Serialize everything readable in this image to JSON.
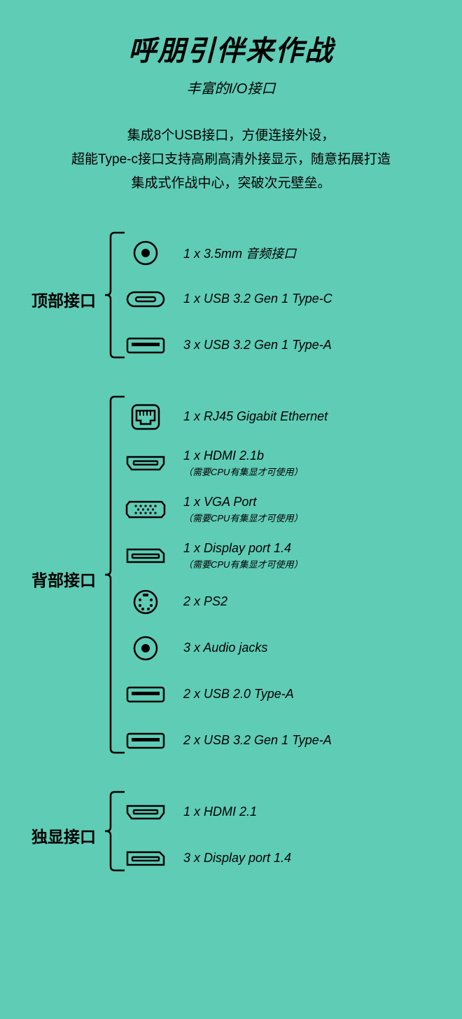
{
  "colors": {
    "background": "#5fccb6",
    "stroke": "#000000",
    "text": "#000000"
  },
  "typography": {
    "title_fontsize": 40,
    "title_weight": 900,
    "subtitle_fontsize": 20,
    "description_fontsize": 19,
    "section_label_fontsize": 23,
    "port_label_fontsize": 18,
    "port_note_fontsize": 13,
    "italic": true
  },
  "title": "呼朋引伴来作战",
  "subtitle": "丰富的I/O接口",
  "description_lines": [
    "集成8个USB接口，方便连接外设，",
    "超能Type-c接口支持高刷高清外接显示，随意拓展打造",
    "集成式作战中心，突破次元壁垒。"
  ],
  "sections": [
    {
      "label": "顶部接口",
      "ports": [
        {
          "icon": "audio-jack",
          "label": "1 x 3.5mm 音频接口"
        },
        {
          "icon": "usb-c",
          "label": "1 x USB 3.2 Gen 1 Type-C"
        },
        {
          "icon": "usb-a",
          "label": "3 x USB 3.2 Gen 1 Type-A"
        }
      ]
    },
    {
      "label": "背部接口",
      "ports": [
        {
          "icon": "rj45",
          "label": "1 x RJ45 Gigabit Ethernet"
        },
        {
          "icon": "hdmi",
          "label": "1 x HDMI 2.1b",
          "note": "（需要CPU有集显才可使用）"
        },
        {
          "icon": "vga",
          "label": "1 x VGA Port",
          "note": "（需要CPU有集显才可使用）"
        },
        {
          "icon": "displayport",
          "label": "1 x Display port 1.4",
          "note": "（需要CPU有集显才可使用）"
        },
        {
          "icon": "ps2",
          "label": "2 x PS2"
        },
        {
          "icon": "audio-jack",
          "label": "3 x Audio jacks"
        },
        {
          "icon": "usb-a",
          "label": "2 x USB 2.0 Type-A"
        },
        {
          "icon": "usb-a",
          "label": "2 x USB 3.2 Gen 1 Type-A"
        }
      ]
    },
    {
      "label": "独显接口",
      "ports": [
        {
          "icon": "hdmi",
          "label": "1 x HDMI 2.1"
        },
        {
          "icon": "displayport",
          "label": "3 x Display port 1.4"
        }
      ]
    }
  ]
}
